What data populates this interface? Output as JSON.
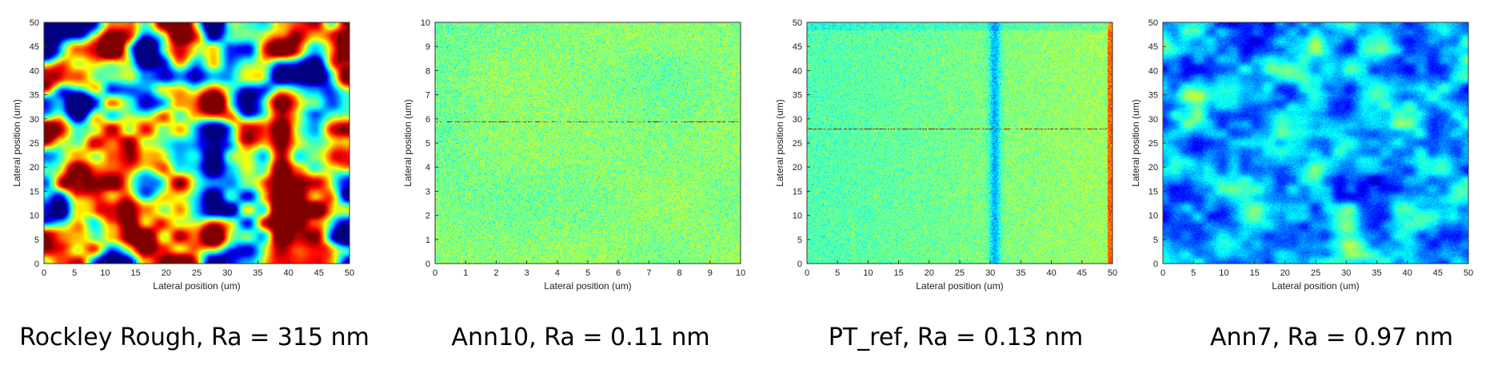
{
  "chart_data": [
    {
      "type": "heatmap",
      "caption": "Rockley Rough, Ra = 315 nm",
      "xlabel": "Lateral position (um)",
      "ylabel": "Lateral position (um)",
      "xlim": [
        0,
        50
      ],
      "ylim": [
        0,
        50
      ],
      "xticks": [
        0,
        5,
        10,
        15,
        20,
        25,
        30,
        35,
        40,
        45,
        50
      ],
      "yticks": [
        0,
        5,
        10,
        15,
        20,
        25,
        30,
        35,
        40,
        45,
        50
      ],
      "colormap": "jet",
      "texture": "smooth-rough"
    },
    {
      "type": "heatmap",
      "caption": "Ann10, Ra = 0.11 nm",
      "xlabel": "Lateral position (um)",
      "ylabel": "Lateral position (um)",
      "xlim": [
        0,
        10
      ],
      "ylim": [
        0,
        10
      ],
      "xticks": [
        0,
        1,
        2,
        3,
        4,
        5,
        6,
        7,
        8,
        9,
        10
      ],
      "yticks": [
        0,
        1,
        2,
        3,
        4,
        5,
        6,
        7,
        8,
        9,
        10
      ],
      "colormap": "jet",
      "texture": "fine-noise"
    },
    {
      "type": "heatmap",
      "caption": "PT_ref, Ra = 0.13 nm",
      "xlabel": "Lateral position (um)",
      "ylabel": "Lateral position (um)",
      "xlim": [
        0,
        50
      ],
      "ylim": [
        0,
        50
      ],
      "xticks": [
        0,
        5,
        10,
        15,
        20,
        25,
        30,
        35,
        40,
        45,
        50
      ],
      "yticks": [
        0,
        5,
        10,
        15,
        20,
        25,
        30,
        35,
        40,
        45,
        50
      ],
      "colormap": "jet",
      "texture": "noise-with-stripe"
    },
    {
      "type": "heatmap",
      "caption": "Ann7, Ra = 0.97 nm",
      "xlabel": "Lateral position (um)",
      "ylabel": "Lateral position (um)",
      "xlim": [
        0,
        50
      ],
      "ylim": [
        0,
        50
      ],
      "xticks": [
        0,
        5,
        10,
        15,
        20,
        25,
        30,
        35,
        40,
        45,
        50
      ],
      "yticks": [
        0,
        5,
        10,
        15,
        20,
        25,
        30,
        35,
        40,
        45,
        50
      ],
      "colormap": "jet",
      "texture": "patchy-low"
    }
  ]
}
